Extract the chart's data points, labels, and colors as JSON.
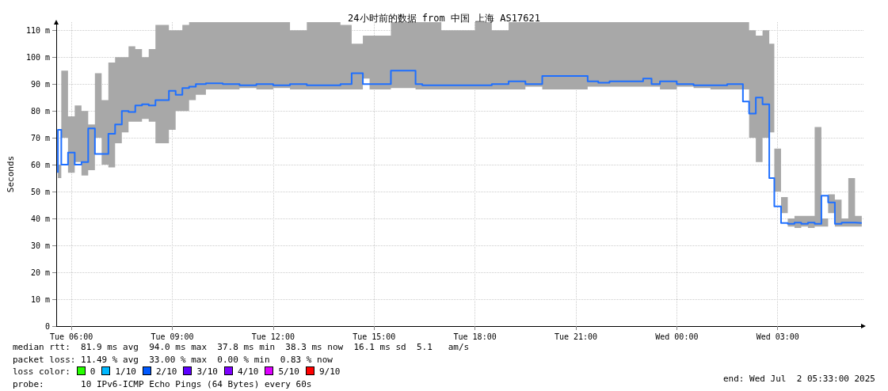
{
  "chart_data": {
    "type": "step",
    "title": "24小时前的数据 from 中国 上海 AS17621",
    "ylabel": "Seconds",
    "x": [
      "2025-07-01T05:36",
      "2025-07-01T05:42",
      "2025-07-01T05:54",
      "2025-07-01T06:06",
      "2025-07-01T06:18",
      "2025-07-01T06:30",
      "2025-07-01T06:42",
      "2025-07-01T06:54",
      "2025-07-01T07:06",
      "2025-07-01T07:18",
      "2025-07-01T07:30",
      "2025-07-01T07:42",
      "2025-07-01T07:54",
      "2025-07-01T08:06",
      "2025-07-01T08:18",
      "2025-07-01T08:30",
      "2025-07-01T08:54",
      "2025-07-01T09:06",
      "2025-07-01T09:18",
      "2025-07-01T09:30",
      "2025-07-01T09:42",
      "2025-07-01T10:00",
      "2025-07-01T10:30",
      "2025-07-01T11:00",
      "2025-07-01T11:30",
      "2025-07-01T12:00",
      "2025-07-01T12:30",
      "2025-07-01T13:00",
      "2025-07-01T13:30",
      "2025-07-01T14:00",
      "2025-07-01T14:20",
      "2025-07-01T14:40",
      "2025-07-01T14:52",
      "2025-07-01T15:30",
      "2025-07-01T16:14",
      "2025-07-01T16:26",
      "2025-07-01T17:00",
      "2025-07-01T18:00",
      "2025-07-01T18:30",
      "2025-07-01T19:00",
      "2025-07-01T19:30",
      "2025-07-01T20:00",
      "2025-07-01T21:21",
      "2025-07-01T21:40",
      "2025-07-01T22:00",
      "2025-07-01T22:30",
      "2025-07-01T23:00",
      "2025-07-01T23:15",
      "2025-07-01T23:30",
      "2025-07-02T00:00",
      "2025-07-02T00:30",
      "2025-07-02T01:00",
      "2025-07-02T01:30",
      "2025-07-02T01:58",
      "2025-07-02T02:09",
      "2025-07-02T02:21",
      "2025-07-02T02:33",
      "2025-07-02T02:45",
      "2025-07-02T02:54",
      "2025-07-02T03:06",
      "2025-07-02T03:18",
      "2025-07-02T03:30",
      "2025-07-02T03:42",
      "2025-07-02T03:54",
      "2025-07-02T04:06",
      "2025-07-02T04:18",
      "2025-07-02T04:30",
      "2025-07-02T04:42",
      "2025-07-02T04:54",
      "2025-07-02T05:06",
      "2025-07-02T05:18",
      "2025-07-02T05:30"
    ],
    "series": [
      {
        "color": "#1e6fff",
        "values": [
          57,
          73,
          60,
          64.5,
          60,
          61,
          73.5,
          64,
          64,
          71.5,
          75,
          80,
          79.6,
          82,
          82.5,
          82,
          84,
          87.5,
          86,
          88.5,
          89,
          90,
          90.3,
          90,
          89.5,
          90,
          89.5,
          90,
          89.5,
          89.5,
          90,
          94,
          90,
          90,
          95,
          90,
          89.5,
          89.5,
          89.5,
          90,
          91,
          90,
          93,
          91,
          90.5,
          91,
          91,
          92,
          90,
          91,
          90,
          89.5,
          89.5,
          90,
          83.5,
          79,
          85,
          82.5,
          55,
          44.5,
          38.3,
          38,
          38.5,
          38,
          38.5,
          38,
          48.5,
          46,
          38,
          38.5,
          38.5,
          38.3
        ],
        "lower": [
          55,
          70,
          57,
          61,
          56,
          58,
          70,
          60,
          59,
          68,
          72,
          76,
          76,
          77,
          76,
          68,
          73,
          80,
          80,
          84,
          86,
          88,
          88,
          88.5,
          88,
          88.5,
          88,
          88,
          88,
          88,
          88,
          92,
          88,
          88.5,
          88,
          88,
          88,
          88,
          88,
          88,
          89,
          88,
          89,
          89,
          89,
          89,
          89,
          89,
          88,
          89,
          88.5,
          88,
          88,
          88,
          70,
          61,
          70,
          72,
          50,
          42,
          37,
          36.5,
          37,
          36.5,
          37,
          37,
          42,
          37,
          37,
          37,
          37,
          37
        ],
        "upper": [
          60,
          95,
          78,
          82,
          80,
          75,
          94,
          84,
          98,
          100,
          100,
          104,
          103,
          100,
          103,
          112,
          110,
          110,
          112,
          113,
          113,
          113,
          113,
          113,
          113,
          113,
          110,
          113,
          113,
          112,
          105,
          108,
          108,
          113,
          113,
          113,
          110,
          113,
          110,
          113,
          113,
          113,
          113,
          113,
          113,
          113,
          113,
          113,
          113,
          113,
          113,
          113,
          113,
          113,
          110,
          108,
          110,
          105,
          66,
          48,
          40,
          41,
          41,
          41,
          74,
          40,
          49,
          47,
          40,
          55,
          41,
          41
        ]
      }
    ],
    "xlim": [
      "2025-07-01T05:33",
      "2025-07-02T05:33"
    ],
    "xticks": [
      {
        "value": "2025-07-01T06:00",
        "label": "Tue 06:00"
      },
      {
        "value": "2025-07-01T09:00",
        "label": "Tue 09:00"
      },
      {
        "value": "2025-07-01T12:00",
        "label": "Tue 12:00"
      },
      {
        "value": "2025-07-01T15:00",
        "label": "Tue 15:00"
      },
      {
        "value": "2025-07-01T18:00",
        "label": "Tue 18:00"
      },
      {
        "value": "2025-07-01T21:00",
        "label": "Tue 21:00"
      },
      {
        "value": "2025-07-02T00:00",
        "label": "Wed 00:00"
      },
      {
        "value": "2025-07-02T03:00",
        "label": "Wed 03:00"
      }
    ],
    "ylim": [
      0,
      113
    ],
    "yticks": [
      0,
      {
        "value": 10,
        "label": "10 m"
      },
      {
        "value": 20,
        "label": "20 m"
      },
      {
        "value": 30,
        "label": "30 m"
      },
      {
        "value": 40,
        "label": "40 m"
      },
      {
        "value": 50,
        "label": "50 m"
      },
      {
        "value": 60,
        "label": "60 m"
      },
      {
        "value": 70,
        "label": "70 m"
      },
      {
        "value": 80,
        "label": "80 m"
      },
      {
        "value": 90,
        "label": "90 m"
      },
      {
        "value": 100,
        "label": "100 m"
      },
      {
        "value": 110,
        "label": "110 m"
      }
    ],
    "grid": true,
    "marker": "none",
    "annotations": [
      "median rtt:  81.9 ms avg  94.0 ms max  37.8 ms min  38.3 ms now  16.1 ms sd  5.1   am/s",
      "packet loss: 11.49 % avg  33.00 % max  0.00 % min  0.83 % now",
      "loss color:",
      "0",
      "1/10",
      "2/10",
      "3/10",
      "4/10",
      "5/10",
      "9/10",
      "probe:       10 IPv6-ICMP Echo Pings (64 Bytes) every 60s",
      "end: Wed Jul  2 05:33:00 2025"
    ]
  }
}
